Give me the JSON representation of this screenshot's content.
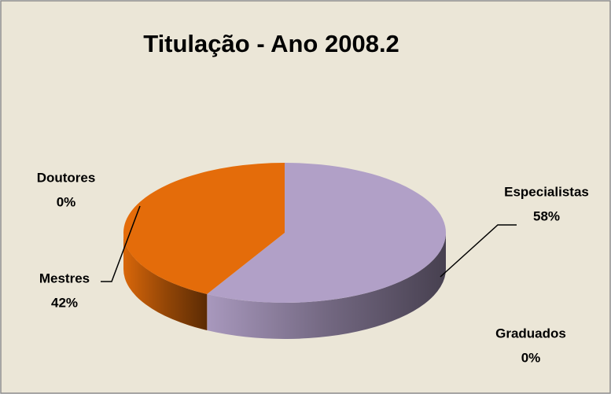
{
  "chart_data": {
    "type": "pie",
    "title": "Titulação - Ano 2008.2",
    "categories": [
      "Especialistas",
      "Graduados",
      "Mestres",
      "Doutores"
    ],
    "values": [
      58,
      0,
      42,
      0
    ],
    "value_labels": [
      "58%",
      "0%",
      "42%",
      "0%"
    ],
    "colors": [
      "#b1a0c7",
      "#9bbb59",
      "#e46c0a",
      "#4f81bd"
    ]
  }
}
